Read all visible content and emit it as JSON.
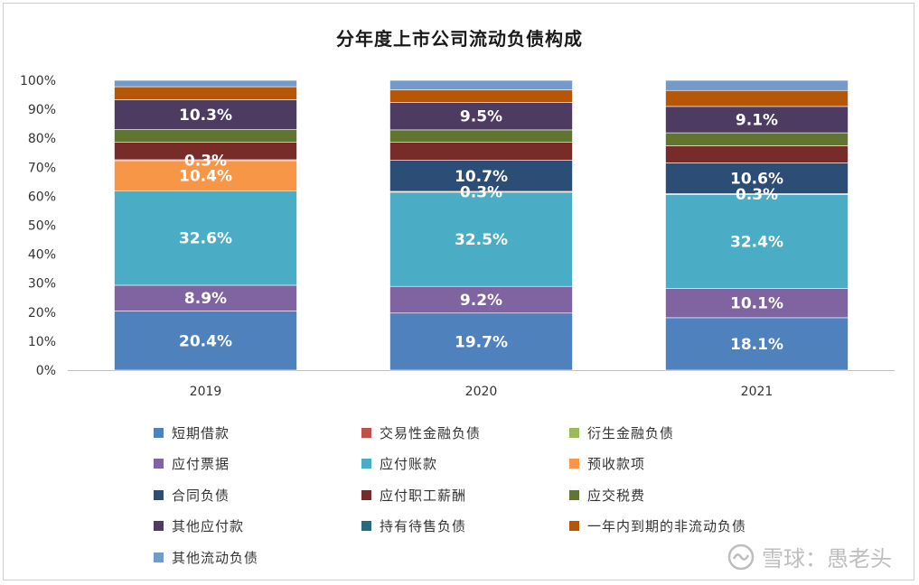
{
  "chart_data": {
    "type": "bar",
    "stacked": true,
    "title": "分年度上市公司流动负债构成",
    "categories": [
      "2019",
      "2020",
      "2021"
    ],
    "ylim": [
      0,
      100
    ],
    "yticks": [
      "0%",
      "10%",
      "20%",
      "30%",
      "40%",
      "50%",
      "60%",
      "70%",
      "80%",
      "90%",
      "100%"
    ],
    "grid": false,
    "legend_position": "bottom",
    "series": [
      {
        "name": "短期借款",
        "color": "#4F81BD",
        "values": [
          20.4,
          19.7,
          18.1
        ],
        "labels": [
          "20.4%",
          "19.7%",
          "18.1%"
        ]
      },
      {
        "name": "交易性金融负债",
        "color": "#C0504D",
        "values": [
          0.0,
          0.0,
          0.0
        ],
        "labels": [
          "",
          "",
          ""
        ]
      },
      {
        "name": "衍生金融负债",
        "color": "#9BBB59",
        "values": [
          0.0,
          0.0,
          0.0
        ],
        "labels": [
          "",
          "",
          ""
        ]
      },
      {
        "name": "应付票据",
        "color": "#8064A2",
        "values": [
          8.9,
          9.2,
          10.1
        ],
        "labels": [
          "8.9%",
          "9.2%",
          "10.1%"
        ]
      },
      {
        "name": "应付账款",
        "color": "#4BACC6",
        "values": [
          32.6,
          32.5,
          32.4
        ],
        "labels": [
          "32.6%",
          "32.5%",
          "32.4%"
        ]
      },
      {
        "name": "预收款项",
        "color": "#F79646",
        "values": [
          10.4,
          0.3,
          0.3
        ],
        "labels": [
          "10.4%",
          "0.3%",
          "0.3%"
        ]
      },
      {
        "name": "合同负债",
        "color": "#2C4D75",
        "values": [
          0.3,
          10.7,
          10.6
        ],
        "labels": [
          "0.3%",
          "10.7%",
          "10.6%"
        ]
      },
      {
        "name": "应付职工薪酬",
        "color": "#772C2A",
        "values": [
          6.0,
          6.2,
          5.9
        ],
        "labels": [
          "",
          "",
          ""
        ]
      },
      {
        "name": "应交税费",
        "color": "#5F7530",
        "values": [
          4.4,
          4.3,
          4.5
        ],
        "labels": [
          "",
          "",
          ""
        ]
      },
      {
        "name": "其他应付款",
        "color": "#4D3B62",
        "values": [
          10.3,
          9.5,
          9.1
        ],
        "labels": [
          "10.3%",
          "9.5%",
          "9.1%"
        ]
      },
      {
        "name": "持有待售负债",
        "color": "#276A7C",
        "values": [
          0.0,
          0.0,
          0.0
        ],
        "labels": [
          "",
          "",
          ""
        ]
      },
      {
        "name": "一年内到期的非流动负债",
        "color": "#B65708",
        "values": [
          4.5,
          4.3,
          5.5
        ],
        "labels": [
          "",
          "",
          ""
        ]
      },
      {
        "name": "其他流动负债",
        "color": "#729ACA",
        "values": [
          2.2,
          3.3,
          3.5
        ],
        "labels": [
          "",
          "",
          ""
        ]
      }
    ]
  },
  "watermark": {
    "text": "雪球：愚老头"
  }
}
